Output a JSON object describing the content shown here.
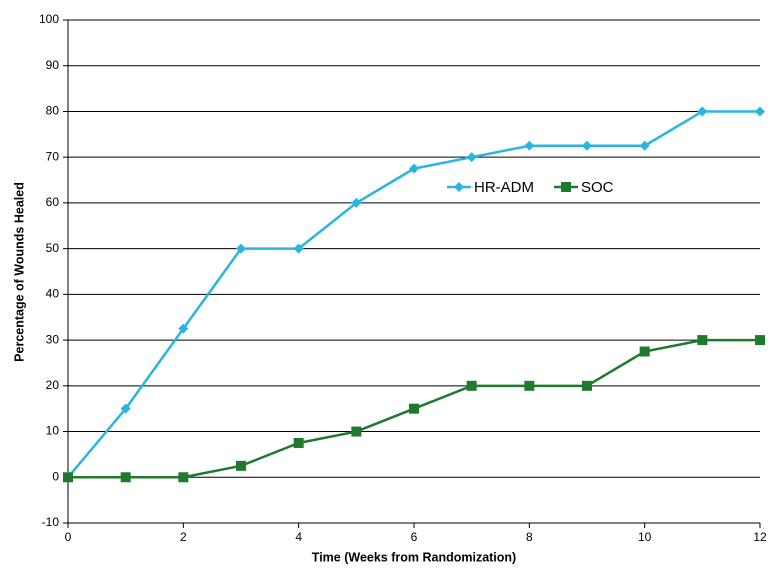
{
  "chart_data": {
    "type": "line",
    "x_label": "Time (Weeks from Randomization)",
    "y_label": "Percentage of Wounds Healed",
    "x": [
      0,
      1,
      2,
      3,
      4,
      5,
      6,
      7,
      8,
      9,
      10,
      11,
      12
    ],
    "series": [
      {
        "name": "HR-ADM",
        "color": "#29b5e0",
        "marker": "diamond",
        "values": [
          0,
          15,
          32.5,
          50,
          50,
          60,
          67.5,
          70,
          72.5,
          72.5,
          72.5,
          80,
          80
        ]
      },
      {
        "name": "SOC",
        "color": "#1f7a2e",
        "marker": "square",
        "values": [
          0,
          0,
          0,
          2.5,
          7.5,
          10,
          15,
          20,
          20,
          20,
          27.5,
          30,
          30
        ]
      }
    ],
    "xlim": [
      0,
      12
    ],
    "xticks": [
      0,
      2,
      4,
      6,
      8,
      10,
      12
    ],
    "ylim": [
      -10,
      100
    ],
    "yticks": [
      -10,
      0,
      10,
      20,
      30,
      40,
      50,
      60,
      70,
      80,
      90,
      100
    ],
    "grid": true,
    "legend": "upper-right"
  }
}
